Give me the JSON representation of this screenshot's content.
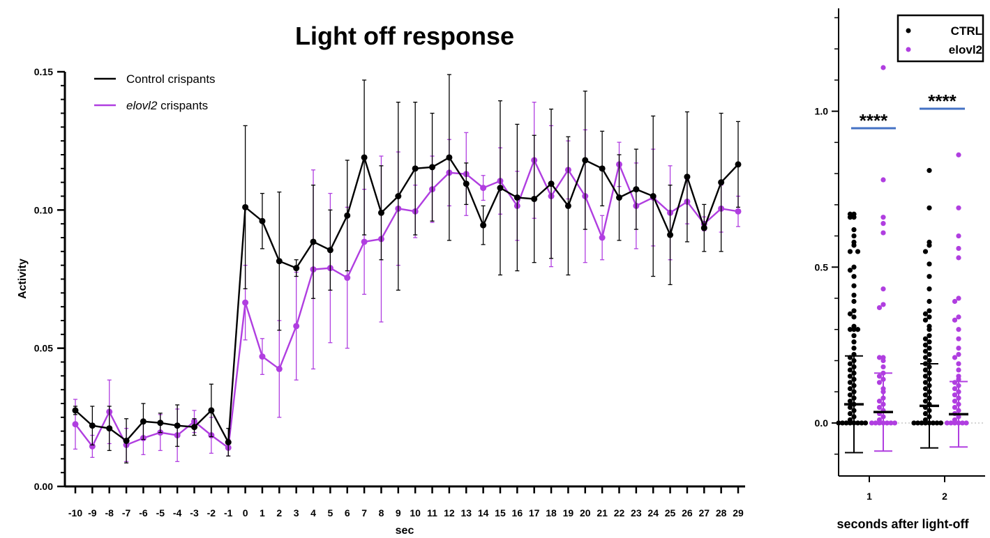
{
  "chart_data": [
    {
      "type": "line",
      "title": "Light off response",
      "xlabel": "sec",
      "ylabel": "Activity",
      "x": [
        -10,
        -9,
        -8,
        -7,
        -6,
        -5,
        -4,
        -3,
        -2,
        -1,
        0,
        1,
        2,
        3,
        4,
        5,
        6,
        7,
        8,
        9,
        10,
        11,
        12,
        13,
        14,
        15,
        16,
        17,
        18,
        19,
        20,
        21,
        22,
        23,
        24,
        25,
        26,
        27,
        28,
        29
      ],
      "xticks": [
        "-10",
        "-9",
        "-8",
        "-7",
        "-6",
        "-5",
        "-4",
        "-3",
        "-2",
        "-1",
        "0",
        "1",
        "2",
        "3",
        "4",
        "5",
        "6",
        "7",
        "8",
        "9",
        "10",
        "11",
        "12",
        "13",
        "14",
        "15",
        "16",
        "17",
        "18",
        "19",
        "20",
        "21",
        "22",
        "23",
        "24",
        "25",
        "26",
        "27",
        "28",
        "29"
      ],
      "ylim": [
        0,
        0.15
      ],
      "yticks": [
        "0.00",
        "0.05",
        "0.10",
        "0.15"
      ],
      "legend_position": "top-left",
      "series": [
        {
          "name": "Control crispants",
          "color": "#000000",
          "values": [
            0.0275,
            0.022,
            0.021,
            0.0165,
            0.0235,
            0.023,
            0.022,
            0.0215,
            0.0275,
            0.016,
            0.101,
            0.096,
            0.0815,
            0.079,
            0.0885,
            0.0855,
            0.098,
            0.119,
            0.099,
            0.105,
            0.115,
            0.1155,
            0.119,
            0.1095,
            0.0945,
            0.108,
            0.1045,
            0.104,
            0.1095,
            0.1015,
            0.118,
            0.115,
            0.1045,
            0.1075,
            0.105,
            0.091,
            0.112,
            0.0935,
            0.11,
            0.1165
          ],
          "errors": [
            0.0015,
            0.007,
            0.008,
            0.008,
            0.0065,
            0.0035,
            0.0075,
            0.003,
            0.0095,
            0.005,
            0.0295,
            0.01,
            0.025,
            0.003,
            0.0205,
            0.0145,
            0.02,
            0.028,
            0.017,
            0.034,
            0.024,
            0.0195,
            0.03,
            0.0075,
            0.007,
            0.0315,
            0.0265,
            0.023,
            0.027,
            0.025,
            0.025,
            0.0135,
            0.0155,
            0.0145,
            0.029,
            0.018,
            0.0235,
            0.0085,
            0.025,
            0.0155
          ]
        },
        {
          "name": "elovl2 crispants",
          "name_italic_part": "elovl2",
          "name_suffix": " crispants",
          "color": "#b03ee0",
          "values": [
            0.0225,
            0.0145,
            0.027,
            0.015,
            0.0175,
            0.0195,
            0.0185,
            0.0235,
            0.0185,
            0.014,
            0.0665,
            0.047,
            0.0425,
            0.058,
            0.0785,
            0.079,
            0.0755,
            0.0885,
            0.0895,
            0.1005,
            0.0995,
            0.1075,
            0.1135,
            0.113,
            0.108,
            0.1105,
            0.1015,
            0.118,
            0.105,
            0.1145,
            0.105,
            0.09,
            0.1165,
            0.1015,
            0.1045,
            0.099,
            0.103,
            0.095,
            0.1005,
            0.0995
          ],
          "errors": [
            0.009,
            0.004,
            0.0115,
            0.006,
            0.006,
            0.0065,
            0.0095,
            0.004,
            0.0065,
            0.003,
            0.0135,
            0.0065,
            0.0175,
            0.0195,
            0.036,
            0.027,
            0.0255,
            0.019,
            0.03,
            0.0205,
            0.0095,
            0.012,
            0.012,
            0.015,
            0.0045,
            0.012,
            0.0125,
            0.021,
            0.0255,
            0.0105,
            0.024,
            0.008,
            0.008,
            0.0155,
            0.0175,
            0.017,
            0.008,
            0.0025,
            0.0085,
            0.0055
          ]
        }
      ]
    },
    {
      "type": "scatter",
      "xlabel": "seconds after light-off",
      "ylabel": "",
      "categories": [
        "1",
        "2"
      ],
      "ylim": [
        -0.17,
        1.33
      ],
      "yticks": [
        "0.0",
        "0.5",
        "1.0"
      ],
      "legend_position": "top-right",
      "significance": [
        "****",
        "****"
      ],
      "series": [
        {
          "name": "CTRL",
          "color": "#000000",
          "means": [
            0.06,
            0.055
          ],
          "sd": [
            0.155,
            0.135
          ],
          "points": [
            [
              0.67,
              0.67,
              0.66,
              0.66,
              0.62,
              0.6,
              0.58,
              0.57,
              0.55,
              0.55,
              0.5,
              0.49,
              0.47,
              0.44,
              0.41,
              0.39,
              0.36,
              0.35,
              0.34,
              0.31,
              0.3,
              0.3,
              0.3,
              0.28,
              0.26,
              0.24,
              0.22,
              0.21,
              0.2,
              0.19,
              0.18,
              0.17,
              0.16,
              0.15,
              0.14,
              0.13,
              0.12,
              0.11,
              0.1,
              0.09,
              0.08,
              0.07,
              0.06,
              0.05,
              0.04,
              0.03,
              0.02,
              0.01,
              0,
              0,
              0,
              0,
              0,
              0,
              0,
              0
            ],
            [
              0.81,
              0.69,
              0.58,
              0.57,
              0.55,
              0.51,
              0.47,
              0.43,
              0.39,
              0.36,
              0.35,
              0.34,
              0.33,
              0.31,
              0.3,
              0.28,
              0.27,
              0.26,
              0.25,
              0.24,
              0.23,
              0.22,
              0.21,
              0.2,
              0.19,
              0.18,
              0.17,
              0.16,
              0.15,
              0.14,
              0.13,
              0.12,
              0.11,
              0.1,
              0.09,
              0.08,
              0.07,
              0.06,
              0.05,
              0.04,
              0.03,
              0.02,
              0.01,
              0,
              0,
              0,
              0,
              0,
              0,
              0,
              0
            ]
          ]
        },
        {
          "name": "elovl2",
          "color": "#b03ee0",
          "means": [
            0.035,
            0.028
          ],
          "sd": [
            0.125,
            0.105
          ],
          "points": [
            [
              1.14,
              0.78,
              0.66,
              0.64,
              0.61,
              0.43,
              0.38,
              0.37,
              0.21,
              0.21,
              0.2,
              0.18,
              0.16,
              0.15,
              0.14,
              0.13,
              0.11,
              0.1,
              0.08,
              0.07,
              0.06,
              0.05,
              0.04,
              0.03,
              0.02,
              0.01,
              0,
              0,
              0,
              0,
              0,
              0,
              0
            ],
            [
              0.86,
              0.69,
              0.6,
              0.56,
              0.53,
              0.4,
              0.39,
              0.34,
              0.33,
              0.3,
              0.27,
              0.24,
              0.22,
              0.21,
              0.19,
              0.17,
              0.15,
              0.14,
              0.13,
              0.12,
              0.11,
              0.1,
              0.09,
              0.08,
              0.07,
              0.06,
              0.05,
              0.04,
              0.03,
              0.02,
              0.01,
              0,
              0,
              0,
              0,
              0,
              0
            ]
          ]
        }
      ]
    }
  ]
}
